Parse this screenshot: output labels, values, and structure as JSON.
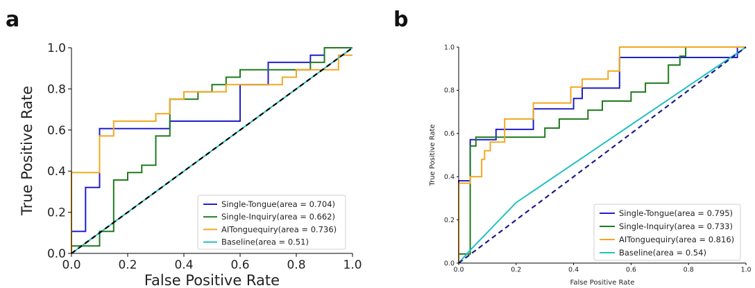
{
  "chart_data": [
    {
      "type": "line",
      "panel_label": "a",
      "xlabel": "False Positive Rate",
      "ylabel": "True Positive Rate",
      "xlim": [
        0,
        1
      ],
      "ylim": [
        0,
        1
      ],
      "xticks": [
        "0.0",
        "0.2",
        "0.4",
        "0.6",
        "0.8",
        "1.0"
      ],
      "yticks": [
        "0.0",
        "0.2",
        "0.4",
        "0.6",
        "0.8",
        "1.0"
      ],
      "grid": false,
      "legend_position": "lower-right",
      "diagonal": {
        "style": "dashed",
        "color": "#000000"
      },
      "series": [
        {
          "name": "Single-Tongue(area = 0.704)",
          "color": "#1f1fc8",
          "points": [
            [
              0,
              0
            ],
            [
              0,
              0.107
            ],
            [
              0.05,
              0.107
            ],
            [
              0.05,
              0.321
            ],
            [
              0.1,
              0.321
            ],
            [
              0.1,
              0.607
            ],
            [
              0.35,
              0.607
            ],
            [
              0.35,
              0.643
            ],
            [
              0.6,
              0.643
            ],
            [
              0.6,
              0.821
            ],
            [
              0.65,
              0.821
            ],
            [
              0.7,
              0.821
            ],
            [
              0.7,
              0.929
            ],
            [
              0.85,
              0.929
            ],
            [
              0.85,
              0.964
            ],
            [
              0.9,
              0.964
            ],
            [
              0.9,
              1.0
            ],
            [
              1.0,
              1.0
            ]
          ]
        },
        {
          "name": "Single-Inquiry(area = 0.662)",
          "color": "#1e7a1e",
          "points": [
            [
              0,
              0
            ],
            [
              0,
              0.036
            ],
            [
              0.1,
              0.036
            ],
            [
              0.1,
              0.107
            ],
            [
              0.15,
              0.107
            ],
            [
              0.15,
              0.357
            ],
            [
              0.2,
              0.357
            ],
            [
              0.2,
              0.393
            ],
            [
              0.25,
              0.393
            ],
            [
              0.25,
              0.429
            ],
            [
              0.3,
              0.429
            ],
            [
              0.3,
              0.571
            ],
            [
              0.35,
              0.571
            ],
            [
              0.35,
              0.75
            ],
            [
              0.45,
              0.75
            ],
            [
              0.45,
              0.786
            ],
            [
              0.5,
              0.786
            ],
            [
              0.5,
              0.821
            ],
            [
              0.55,
              0.821
            ],
            [
              0.55,
              0.857
            ],
            [
              0.6,
              0.857
            ],
            [
              0.6,
              0.893
            ],
            [
              0.75,
              0.893
            ],
            [
              0.75,
              0.893
            ],
            [
              0.85,
              0.893
            ],
            [
              0.85,
              0.929
            ],
            [
              0.9,
              0.929
            ],
            [
              0.9,
              1.0
            ],
            [
              1.0,
              1.0
            ]
          ]
        },
        {
          "name": "AITonguequiry(area = 0.736)",
          "color": "#f0a820",
          "points": [
            [
              0,
              0
            ],
            [
              0,
              0.393
            ],
            [
              0.1,
              0.393
            ],
            [
              0.1,
              0.571
            ],
            [
              0.15,
              0.571
            ],
            [
              0.15,
              0.643
            ],
            [
              0.3,
              0.643
            ],
            [
              0.3,
              0.679
            ],
            [
              0.35,
              0.679
            ],
            [
              0.35,
              0.75
            ],
            [
              0.4,
              0.75
            ],
            [
              0.4,
              0.786
            ],
            [
              0.55,
              0.786
            ],
            [
              0.55,
              0.821
            ],
            [
              0.75,
              0.821
            ],
            [
              0.75,
              0.857
            ],
            [
              0.8,
              0.857
            ],
            [
              0.8,
              0.893
            ],
            [
              0.95,
              0.893
            ],
            [
              0.95,
              0.964
            ],
            [
              1.0,
              0.964
            ]
          ]
        },
        {
          "name": "Baseline(area = 0.51)",
          "color": "#20c0c0",
          "points": [
            [
              0,
              0
            ],
            [
              1,
              1
            ]
          ]
        }
      ]
    },
    {
      "type": "line",
      "panel_label": "b",
      "xlabel": "False Positive Rate",
      "ylabel": "True Positive Rate",
      "xlim": [
        0,
        1
      ],
      "ylim": [
        0,
        1
      ],
      "xticks": [
        "0.0",
        "0.2",
        "0.4",
        "0.6",
        "0.8",
        "1.0"
      ],
      "yticks": [
        "0.0",
        "0.2",
        "0.4",
        "0.6",
        "0.8",
        "1.0"
      ],
      "grid": false,
      "legend_position": "lower-right",
      "diagonal": {
        "style": "dashed",
        "color": "#1a1a8c"
      },
      "series": [
        {
          "name": "Single-Tongue(area = 0.795)",
          "color": "#1f1fc8",
          "points": [
            [
              0,
              0
            ],
            [
              0,
              0.381
            ],
            [
              0.04,
              0.381
            ],
            [
              0.04,
              0.571
            ],
            [
              0.13,
              0.571
            ],
            [
              0.13,
              0.619
            ],
            [
              0.26,
              0.619
            ],
            [
              0.26,
              0.714
            ],
            [
              0.4,
              0.714
            ],
            [
              0.4,
              0.762
            ],
            [
              0.43,
              0.762
            ],
            [
              0.43,
              0.81
            ],
            [
              0.56,
              0.81
            ],
            [
              0.56,
              0.952
            ],
            [
              0.97,
              0.952
            ],
            [
              0.97,
              1.0
            ],
            [
              1.0,
              1.0
            ]
          ]
        },
        {
          "name": "Single-Inquiry(area = 0.733)",
          "color": "#1e7a1e",
          "points": [
            [
              0,
              0
            ],
            [
              0,
              0.042
            ],
            [
              0.04,
              0.042
            ],
            [
              0.04,
              0.542
            ],
            [
              0.06,
              0.542
            ],
            [
              0.06,
              0.583
            ],
            [
              0.13,
              0.583
            ],
            [
              0.13,
              0.583
            ],
            [
              0.3,
              0.583
            ],
            [
              0.3,
              0.625
            ],
            [
              0.35,
              0.625
            ],
            [
              0.35,
              0.667
            ],
            [
              0.45,
              0.667
            ],
            [
              0.45,
              0.708
            ],
            [
              0.5,
              0.708
            ],
            [
              0.5,
              0.75
            ],
            [
              0.6,
              0.75
            ],
            [
              0.6,
              0.792
            ],
            [
              0.65,
              0.792
            ],
            [
              0.65,
              0.833
            ],
            [
              0.73,
              0.833
            ],
            [
              0.73,
              0.917
            ],
            [
              0.77,
              0.917
            ],
            [
              0.77,
              0.958
            ],
            [
              0.79,
              0.958
            ],
            [
              0.79,
              1.0
            ],
            [
              1.0,
              1.0
            ]
          ]
        },
        {
          "name": "AITonguequiry(area = 0.816)",
          "color": "#f0a820",
          "points": [
            [
              0,
              0
            ],
            [
              0,
              0.37
            ],
            [
              0.04,
              0.37
            ],
            [
              0.04,
              0.4
            ],
            [
              0.08,
              0.4
            ],
            [
              0.08,
              0.48
            ],
            [
              0.09,
              0.48
            ],
            [
              0.09,
              0.52
            ],
            [
              0.11,
              0.52
            ],
            [
              0.11,
              0.56
            ],
            [
              0.16,
              0.56
            ],
            [
              0.16,
              0.667
            ],
            [
              0.26,
              0.667
            ],
            [
              0.26,
              0.741
            ],
            [
              0.39,
              0.741
            ],
            [
              0.39,
              0.815
            ],
            [
              0.43,
              0.815
            ],
            [
              0.43,
              0.852
            ],
            [
              0.52,
              0.852
            ],
            [
              0.52,
              0.889
            ],
            [
              0.56,
              0.889
            ],
            [
              0.56,
              1.0
            ],
            [
              1.0,
              1.0
            ]
          ]
        },
        {
          "name": "Baseline(area = 0.54)",
          "color": "#20c0c0",
          "points": [
            [
              0,
              0
            ],
            [
              0.04,
              0.06
            ],
            [
              0.2,
              0.28
            ],
            [
              1.0,
              1.0
            ]
          ]
        }
      ]
    }
  ]
}
